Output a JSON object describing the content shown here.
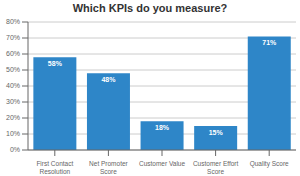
{
  "chart_data": {
    "type": "bar",
    "title": "Which KPIs do you measure?",
    "categories": [
      "First Contact\nResolution",
      "Net Promoter\nScore",
      "Customer Value",
      "Customer Effort\nScore",
      "Quality Score"
    ],
    "values": [
      58,
      48,
      18,
      15,
      71
    ],
    "value_labels": [
      "58%",
      "48%",
      "18%",
      "15%",
      "71%"
    ],
    "color": "#2E86C8",
    "ylim": [
      0,
      80
    ],
    "yticks": [
      {
        "value": 0,
        "label": "0%"
      },
      {
        "value": 10,
        "label": "10%"
      },
      {
        "value": 20,
        "label": "20%"
      },
      {
        "value": 30,
        "label": "30%"
      },
      {
        "value": 40,
        "label": "40%"
      },
      {
        "value": 50,
        "label": "50%"
      },
      {
        "value": 60,
        "label": "60%"
      },
      {
        "value": 70,
        "label": "70%"
      },
      {
        "value": 80,
        "label": "80%"
      }
    ],
    "grid": true,
    "data_labels": true
  }
}
